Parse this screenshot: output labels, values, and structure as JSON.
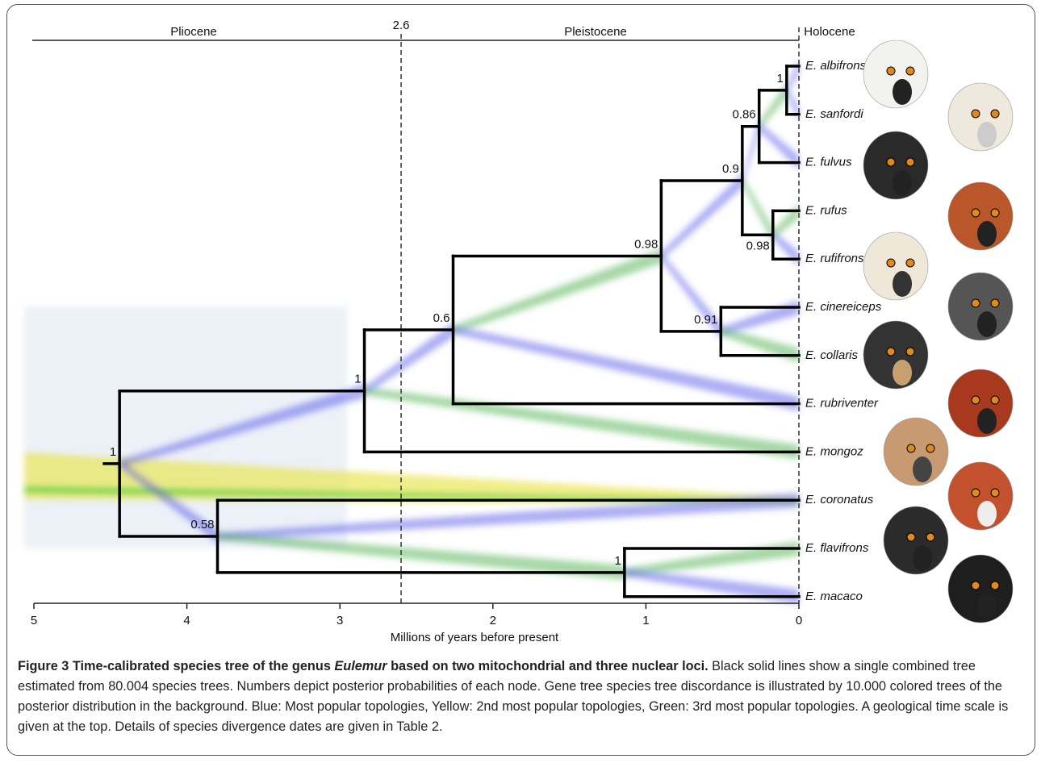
{
  "figure": {
    "epochs": [
      "Pliocene",
      "Pleistocene",
      "Holocene"
    ],
    "boundary": 2.6,
    "xlim": [
      5,
      0
    ],
    "xticks": [
      5,
      4,
      3,
      2,
      1,
      0
    ],
    "xlabel": "Millions of years before present",
    "tree": {
      "stem_age": 4.55,
      "age": 4.44,
      "posterior": 1,
      "children": [
        {
          "age": 2.84,
          "posterior": 1,
          "children": [
            {
              "age": 2.26,
              "posterior": 0.6,
              "children": [
                {
                  "age": 0.9,
                  "posterior": 0.98,
                  "children": [
                    {
                      "age": 0.37,
                      "posterior": 0.9,
                      "children": [
                        {
                          "age": 0.26,
                          "posterior": 0.86,
                          "children": [
                            {
                              "age": 0.08,
                              "posterior": 1,
                              "children": [
                                {
                                  "name": "E. albifrons"
                                },
                                {
                                  "name": "E. sanfordi"
                                }
                              ]
                            },
                            {
                              "name": "E. fulvus"
                            }
                          ]
                        },
                        {
                          "age": 0.17,
                          "posterior": 0.98,
                          "children": [
                            {
                              "name": "E. rufus"
                            },
                            {
                              "name": "E. rufifrons"
                            }
                          ]
                        }
                      ]
                    },
                    {
                      "age": 0.51,
                      "posterior": 0.91,
                      "children": [
                        {
                          "name": "E. cinereiceps"
                        },
                        {
                          "name": "E. collaris"
                        }
                      ]
                    }
                  ]
                },
                {
                  "name": "E. rubriventer"
                }
              ]
            },
            {
              "name": "E. mongoz"
            }
          ]
        },
        {
          "age": 3.8,
          "posterior": 0.58,
          "children": [
            {
              "name": "E. coronatus"
            },
            {
              "age": 1.14,
              "posterior": 1,
              "children": [
                {
                  "name": "E. flavifrons"
                },
                {
                  "name": "E. macaco"
                }
              ]
            }
          ]
        }
      ]
    }
  },
  "caption": {
    "label": "Figure 3",
    "title_start": "Time-calibrated species tree of the genus",
    "title_genus": "Eulemur",
    "title_end": "based on two mitochondrial and three nuclear loci.",
    "body": "Black solid lines show a single combined tree estimated from 80.004 species trees. Numbers depict posterior probabilities of each node. Gene tree species tree discordance is illustrated by 10.000 colored trees of the posterior distribution in the background. Blue: Most popular topologies, Yellow: 2nd most popular topologies, Green: 3rd most popular topologies. A geological time scale is given at the top. Details of species divergence dates are given in Table 2."
  }
}
